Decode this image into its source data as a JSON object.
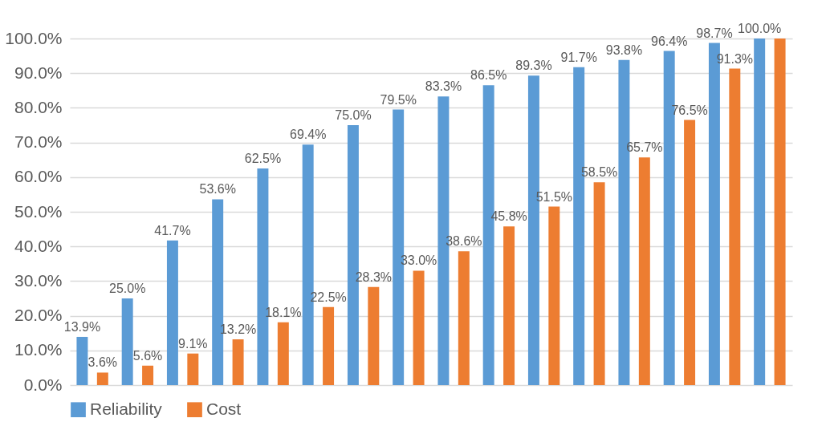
{
  "chart_data": {
    "type": "bar",
    "categories": [
      null,
      null,
      null,
      null,
      null,
      null,
      null,
      null,
      null,
      null,
      null,
      null,
      null,
      null,
      null,
      null
    ],
    "series": [
      {
        "name": "Reliability",
        "color": "#5b9bd5",
        "values": [
          13.9,
          25.0,
          41.7,
          53.6,
          62.5,
          69.4,
          75.0,
          79.5,
          83.3,
          86.5,
          89.3,
          91.7,
          93.8,
          96.4,
          98.7,
          100.0
        ],
        "value_labels": [
          "13.9%",
          "25.0%",
          "41.7%",
          "53.6%",
          "62.5%",
          "69.4%",
          "75.0%",
          "79.5%",
          "83.3%",
          "86.5%",
          "89.3%",
          "91.7%",
          "93.8%",
          "96.4%",
          "98.7%",
          "100.0%"
        ]
      },
      {
        "name": "Cost",
        "color": "#ed7d31",
        "values": [
          3.6,
          5.6,
          9.1,
          13.2,
          18.1,
          22.5,
          28.3,
          33.0,
          38.6,
          45.8,
          51.5,
          58.5,
          65.7,
          76.5,
          91.3,
          100.0
        ],
        "value_labels": [
          "3.6%",
          "5.6%",
          "9.1%",
          "13.2%",
          "18.1%",
          "22.5%",
          "28.3%",
          "33.0%",
          "38.6%",
          "45.8%",
          "51.5%",
          "58.5%",
          "65.7%",
          "76.5%",
          "91.3%",
          null
        ]
      }
    ],
    "ylim": [
      0,
      100
    ],
    "yticks": [
      {
        "value": 0,
        "label": "0.0%"
      },
      {
        "value": 10,
        "label": "10.0%"
      },
      {
        "value": 20,
        "label": "20.0%"
      },
      {
        "value": 30,
        "label": "30.0%"
      },
      {
        "value": 40,
        "label": "40.0%"
      },
      {
        "value": 50,
        "label": "50.0%"
      },
      {
        "value": 60,
        "label": "60.0%"
      },
      {
        "value": 70,
        "label": "70.0%"
      },
      {
        "value": 80,
        "label": "80.0%"
      },
      {
        "value": 90,
        "label": "90.0%"
      },
      {
        "value": 100,
        "label": "100.0%"
      }
    ],
    "grid": "y",
    "legend": "bottom"
  }
}
